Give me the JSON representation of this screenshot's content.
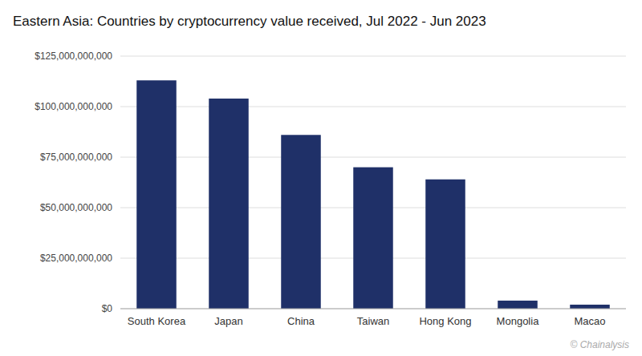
{
  "chart_data": {
    "type": "bar",
    "title": "Eastern Asia: Countries by cryptocurrency value received, Jul 2022 - Jun 2023",
    "source": "© Chainalysis",
    "categories": [
      "South Korea",
      "Japan",
      "China",
      "Taiwan",
      "Hong Kong",
      "Mongolia",
      "Macao"
    ],
    "values": [
      113000000000,
      104000000000,
      86000000000,
      70000000000,
      64000000000,
      4000000000,
      2000000000
    ],
    "color": "#1f3068",
    "ylim": [
      0,
      125000000000
    ],
    "yticks": [
      {
        "value": 0,
        "label": "$0"
      },
      {
        "value": 25000000000,
        "label": "$25,000,000,000"
      },
      {
        "value": 50000000000,
        "label": "$50,000,000,000"
      },
      {
        "value": 75000000000,
        "label": "$75,000,000,000"
      },
      {
        "value": 100000000000,
        "label": "$100,000,000,000"
      },
      {
        "value": 125000000000,
        "label": "$125,000,000,000"
      }
    ],
    "grid": true
  }
}
